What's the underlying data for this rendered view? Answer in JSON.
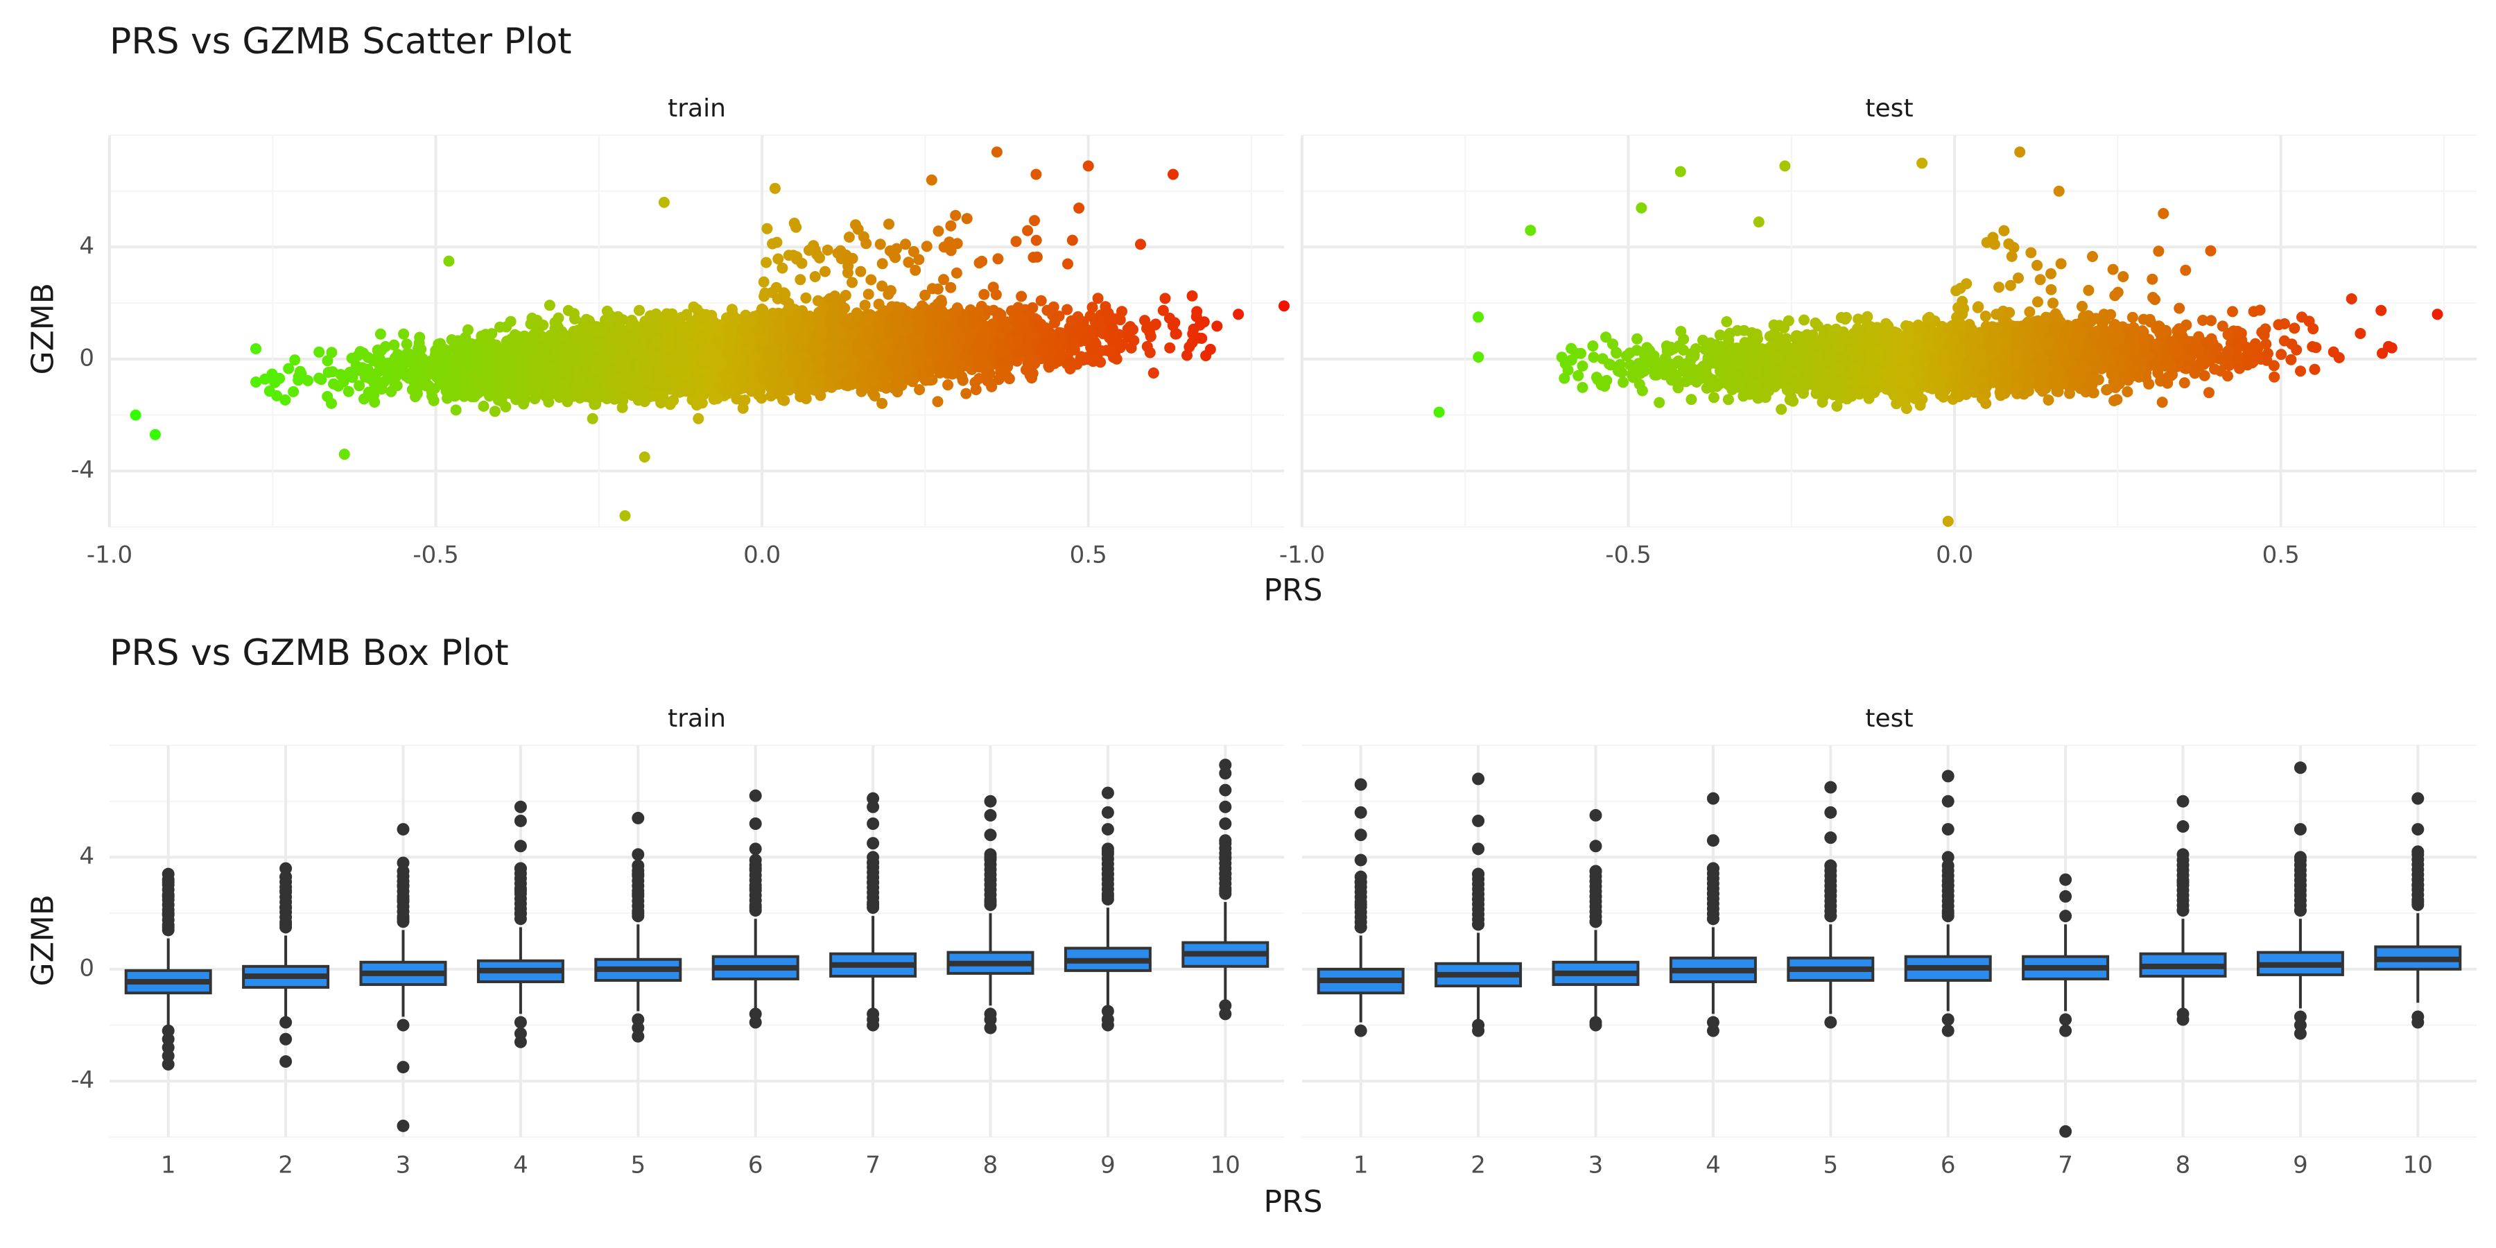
{
  "colors": {
    "grid_major": "#ebebeb",
    "grid_minor": "#f4f4f4",
    "tick_text": "#4d4d4d",
    "low": "#32ff00",
    "mid": "#c8b400",
    "high": "#f01400",
    "box_fill": "#2b8cee",
    "box_line": "#333333",
    "outlier": "#333333"
  },
  "chart_data": [
    {
      "type": "scatter",
      "title": "PRS vs GZMB Scatter Plot",
      "xlabel": "PRS",
      "ylabel": "GZMB",
      "facets": [
        "train",
        "test"
      ],
      "xlim": [
        -1.0,
        0.8
      ],
      "ylim": [
        -6,
        8
      ],
      "xticks": [
        -1.0,
        -0.5,
        0.0,
        0.5
      ],
      "xtick_labels": [
        "-1.0",
        "-0.5",
        "0.0",
        "0.5"
      ],
      "yticks": [
        -4,
        0,
        4
      ],
      "ytick_labels": [
        "-4",
        "0",
        "4"
      ],
      "grid": true,
      "color_scale": "gradient green (low PRS) to orange to red (high PRS)",
      "series": [
        {
          "facet": "train",
          "approx_points": 10000,
          "trend": {
            "slope": 2.0,
            "intercept": 0.2,
            "sd": 0.55
          },
          "highlighted_points": [
            {
              "x": -0.96,
              "y": -2.0
            },
            {
              "x": -0.93,
              "y": -2.7
            },
            {
              "x": -0.21,
              "y": -5.6
            },
            {
              "x": -0.18,
              "y": -3.5
            },
            {
              "x": -0.64,
              "y": -3.4
            },
            {
              "x": 0.73,
              "y": 1.6
            },
            {
              "x": 0.8,
              "y": 1.9
            },
            {
              "x": 0.36,
              "y": 7.4
            },
            {
              "x": 0.63,
              "y": 6.6
            },
            {
              "x": 0.5,
              "y": 6.9
            },
            {
              "x": 0.58,
              "y": 4.1
            },
            {
              "x": 0.02,
              "y": 6.1
            },
            {
              "x": -0.48,
              "y": 3.5
            },
            {
              "x": -0.15,
              "y": 5.6
            },
            {
              "x": 0.26,
              "y": 6.4
            },
            {
              "x": 0.42,
              "y": 6.6
            },
            {
              "x": 0.6,
              "y": -0.5
            },
            {
              "x": 0.66,
              "y": 0.9
            }
          ]
        },
        {
          "facet": "test",
          "approx_points": 4000,
          "trend": {
            "slope": 1.2,
            "intercept": 0.0,
            "sd": 0.55
          },
          "highlighted_points": [
            {
              "x": -0.79,
              "y": -1.9
            },
            {
              "x": -0.73,
              "y": 1.5
            },
            {
              "x": -0.65,
              "y": 4.6
            },
            {
              "x": -0.42,
              "y": 6.7
            },
            {
              "x": -0.26,
              "y": 6.9
            },
            {
              "x": 0.1,
              "y": 7.4
            },
            {
              "x": -0.01,
              "y": -5.8
            },
            {
              "x": 0.32,
              "y": 5.2
            },
            {
              "x": 0.74,
              "y": 1.6
            },
            {
              "x": 0.67,
              "y": 0.4
            },
            {
              "x": -0.05,
              "y": 7.0
            },
            {
              "x": -0.48,
              "y": 5.4
            },
            {
              "x": 0.16,
              "y": 6.0
            },
            {
              "x": -0.3,
              "y": 4.9
            }
          ]
        }
      ]
    },
    {
      "type": "box",
      "title": "PRS vs GZMB Box Plot",
      "xlabel": "PRS",
      "ylabel": "GZMB",
      "facets": [
        "train",
        "test"
      ],
      "categories": [
        "1",
        "2",
        "3",
        "4",
        "5",
        "6",
        "7",
        "8",
        "9",
        "10"
      ],
      "ylim": [
        -6,
        8
      ],
      "yticks": [
        -4,
        0,
        4
      ],
      "ytick_labels": [
        "-4",
        "0",
        "4"
      ],
      "grid": true,
      "series": [
        {
          "facet": "train",
          "boxes": [
            {
              "q1": -0.85,
              "median": -0.45,
              "q3": -0.05,
              "lower": -2.0,
              "upper": 1.1,
              "outliers": [
                -2.2,
                -2.5,
                -2.8,
                -3.1,
                -3.4,
                1.5,
                2.0,
                2.6,
                3.1,
                3.4
              ]
            },
            {
              "q1": -0.65,
              "median": -0.25,
              "q3": 0.1,
              "lower": -1.7,
              "upper": 1.2,
              "outliers": [
                -1.9,
                -2.5,
                -3.3,
                1.6,
                2.2,
                2.8,
                3.3,
                3.6
              ]
            },
            {
              "q1": -0.55,
              "median": -0.15,
              "q3": 0.25,
              "lower": -1.7,
              "upper": 1.4,
              "outliers": [
                -2.0,
                -3.5,
                -5.6,
                1.8,
                2.5,
                3.0,
                3.8,
                5.0
              ]
            },
            {
              "q1": -0.45,
              "median": -0.05,
              "q3": 0.3,
              "lower": -1.6,
              "upper": 1.5,
              "outliers": [
                -1.9,
                -2.3,
                -2.6,
                2.0,
                2.8,
                3.6,
                4.4,
                5.3,
                5.8
              ]
            },
            {
              "q1": -0.4,
              "median": 0.0,
              "q3": 0.35,
              "lower": -1.5,
              "upper": 1.6,
              "outliers": [
                -1.8,
                -2.1,
                -2.4,
                2.0,
                2.7,
                3.4,
                4.1,
                5.4
              ]
            },
            {
              "q1": -0.35,
              "median": 0.05,
              "q3": 0.45,
              "lower": -1.4,
              "upper": 1.8,
              "outliers": [
                -1.6,
                -1.9,
                2.2,
                2.9,
                3.6,
                4.3,
                5.2,
                6.2
              ]
            },
            {
              "q1": -0.25,
              "median": 0.15,
              "q3": 0.55,
              "lower": -1.4,
              "upper": 1.9,
              "outliers": [
                -1.6,
                -1.8,
                -2.0,
                2.3,
                3.1,
                3.8,
                4.5,
                5.2,
                5.8,
                6.1
              ]
            },
            {
              "q1": -0.15,
              "median": 0.2,
              "q3": 0.6,
              "lower": -1.3,
              "upper": 2.0,
              "outliers": [
                -1.6,
                -1.8,
                -2.1,
                2.4,
                3.2,
                4.0,
                4.8,
                5.5,
                6.0
              ]
            },
            {
              "q1": -0.05,
              "median": 0.3,
              "q3": 0.75,
              "lower": -1.3,
              "upper": 2.2,
              "outliers": [
                -1.5,
                -1.8,
                -2.0,
                2.6,
                3.4,
                4.2,
                5.0,
                5.6,
                6.3
              ]
            },
            {
              "q1": 0.1,
              "median": 0.55,
              "q3": 0.95,
              "lower": -1.1,
              "upper": 2.4,
              "outliers": [
                -1.3,
                -1.6,
                2.8,
                3.4,
                4.0,
                4.6,
                5.2,
                5.8,
                6.4,
                7.0,
                7.3
              ]
            }
          ]
        },
        {
          "facet": "test",
          "boxes": [
            {
              "q1": -0.85,
              "median": -0.4,
              "q3": 0.0,
              "lower": -1.9,
              "upper": 1.2,
              "outliers": [
                -2.2,
                1.5,
                2.3,
                3.1,
                3.9,
                4.8,
                5.6,
                6.6
              ]
            },
            {
              "q1": -0.6,
              "median": -0.2,
              "q3": 0.2,
              "lower": -1.8,
              "upper": 1.3,
              "outliers": [
                -2.0,
                -2.2,
                1.6,
                2.5,
                3.4,
                4.3,
                5.3,
                6.8
              ]
            },
            {
              "q1": -0.55,
              "median": -0.15,
              "q3": 0.25,
              "lower": -1.7,
              "upper": 1.4,
              "outliers": [
                -1.9,
                -2.0,
                1.7,
                2.6,
                3.5,
                4.4,
                5.5
              ]
            },
            {
              "q1": -0.45,
              "median": -0.05,
              "q3": 0.4,
              "lower": -1.6,
              "upper": 1.5,
              "outliers": [
                -1.9,
                -2.2,
                1.8,
                2.7,
                3.6,
                4.6,
                6.1
              ]
            },
            {
              "q1": -0.4,
              "median": 0.0,
              "q3": 0.4,
              "lower": -1.6,
              "upper": 1.6,
              "outliers": [
                -1.9,
                1.9,
                2.8,
                3.7,
                4.7,
                5.6,
                6.5
              ]
            },
            {
              "q1": -0.4,
              "median": 0.05,
              "q3": 0.45,
              "lower": -1.5,
              "upper": 1.6,
              "outliers": [
                -1.8,
                -2.2,
                2.0,
                3.0,
                4.0,
                5.0,
                6.0,
                6.9
              ]
            },
            {
              "q1": -0.35,
              "median": 0.05,
              "q3": 0.45,
              "lower": -1.5,
              "upper": 1.6,
              "outliers": [
                -1.8,
                -2.2,
                -5.8,
                1.9,
                2.6,
                3.2
              ]
            },
            {
              "q1": -0.25,
              "median": 0.1,
              "q3": 0.55,
              "lower": -1.4,
              "upper": 1.8,
              "outliers": [
                -1.6,
                -1.8,
                2.1,
                3.1,
                4.1,
                5.1,
                6.0
              ]
            },
            {
              "q1": -0.2,
              "median": 0.15,
              "q3": 0.6,
              "lower": -1.4,
              "upper": 1.8,
              "outliers": [
                -1.7,
                -2.0,
                -2.3,
                2.1,
                3.0,
                4.0,
                5.0,
                7.2
              ]
            },
            {
              "q1": 0.0,
              "median": 0.35,
              "q3": 0.8,
              "lower": -1.2,
              "upper": 2.0,
              "outliers": [
                -1.7,
                -1.9,
                2.4,
                3.0,
                4.2,
                5.0,
                6.1
              ]
            }
          ]
        }
      ]
    }
  ]
}
